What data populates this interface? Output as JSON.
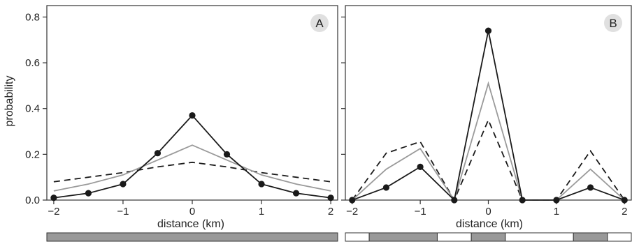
{
  "colors": {
    "solid": "#1a1a1a",
    "gray": "#9a9a9a",
    "dashed": "#1a1a1a",
    "bar_fill": "#999999",
    "badge": "#e0e0e0"
  },
  "chart_data": [
    {
      "type": "line",
      "panel_label": "A",
      "xlabel": "distance (km)",
      "ylabel": "probability",
      "ylim": [
        0,
        0.85
      ],
      "xlim": [
        -2.1,
        2.1
      ],
      "x_ticks": [
        "−2",
        "−1",
        "0",
        "1",
        "2"
      ],
      "y_ticks": [
        "0.0",
        "0.2",
        "0.4",
        "0.6",
        "0.8"
      ],
      "grid": false,
      "series": [
        {
          "style": "solid-markers",
          "x": [
            -2,
            -1.5,
            -1,
            -0.5,
            0,
            0.5,
            1,
            1.5,
            2
          ],
          "values": [
            0.01,
            0.03,
            0.07,
            0.205,
            0.37,
            0.2,
            0.07,
            0.03,
            0.01
          ]
        },
        {
          "style": "gray",
          "x": [
            -2,
            -1.5,
            -1,
            -0.5,
            0,
            0.5,
            1,
            1.5,
            2
          ],
          "values": [
            0.04,
            0.07,
            0.11,
            0.175,
            0.24,
            0.175,
            0.11,
            0.07,
            0.04
          ]
        },
        {
          "style": "dashed",
          "x": [
            -2,
            -1.5,
            -1,
            -0.5,
            0,
            0.5,
            1,
            1.5,
            2
          ],
          "values": [
            0.08,
            0.1,
            0.12,
            0.145,
            0.165,
            0.145,
            0.12,
            0.1,
            0.08
          ]
        }
      ],
      "segments": [
        {
          "from": -2.1,
          "to": 2.1,
          "filled": true
        }
      ]
    },
    {
      "type": "line",
      "panel_label": "B",
      "xlabel": "distance (km)",
      "ylabel": "",
      "ylim": [
        0,
        0.85
      ],
      "xlim": [
        -2.1,
        2.1
      ],
      "x_ticks": [
        "−2",
        "−1",
        "0",
        "1",
        "2"
      ],
      "y_ticks": [],
      "grid": false,
      "series": [
        {
          "style": "solid-markers",
          "x": [
            -2,
            -1.5,
            -1,
            -0.5,
            0,
            0.5,
            1,
            1.5,
            2
          ],
          "values": [
            0,
            0.055,
            0.145,
            0,
            0.74,
            0,
            0,
            0.055,
            0
          ]
        },
        {
          "style": "gray",
          "x": [
            -2,
            -1.5,
            -1,
            -0.5,
            0,
            0.5,
            1,
            1.5,
            2
          ],
          "values": [
            0,
            0.135,
            0.225,
            0,
            0.51,
            0,
            0,
            0.135,
            0
          ]
        },
        {
          "style": "dashed",
          "x": [
            -2,
            -1.5,
            -1,
            -0.5,
            0,
            0.5,
            1,
            1.5,
            2
          ],
          "values": [
            0,
            0.205,
            0.255,
            0,
            0.35,
            0,
            0,
            0.215,
            0
          ]
        }
      ],
      "segments": [
        {
          "from": -2.1,
          "to": -1.75,
          "filled": false
        },
        {
          "from": -1.75,
          "to": -0.75,
          "filled": true
        },
        {
          "from": -0.75,
          "to": -0.25,
          "filled": false
        },
        {
          "from": -0.25,
          "to": 0.25,
          "filled": true
        },
        {
          "from": 0.25,
          "to": 1.25,
          "filled": false
        },
        {
          "from": 1.25,
          "to": 1.75,
          "filled": true
        },
        {
          "from": 1.75,
          "to": 2.1,
          "filled": false
        }
      ]
    }
  ]
}
